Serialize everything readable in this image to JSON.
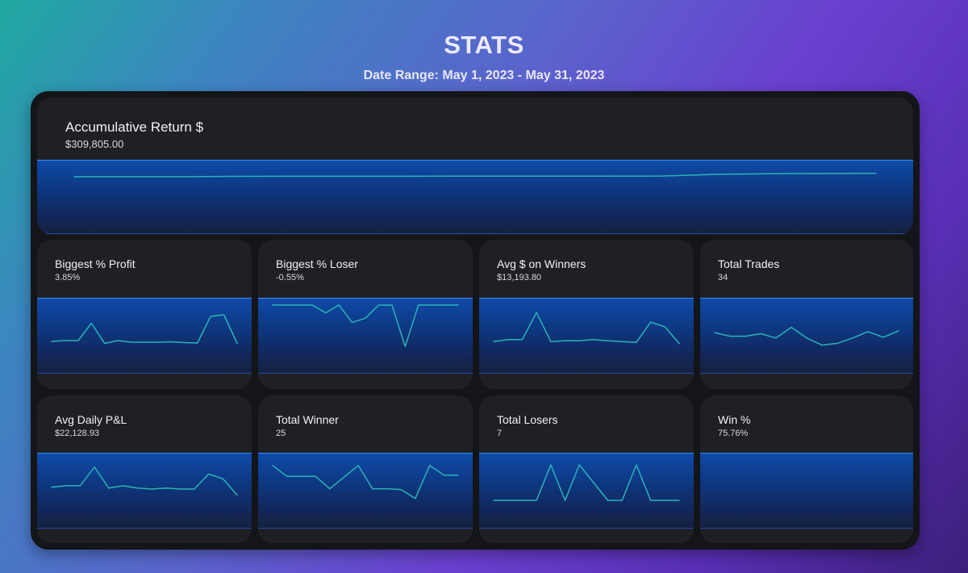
{
  "page": {
    "title": "STATS",
    "date_range": "Date Range: May 1, 2023 - May 31, 2023"
  },
  "hero": {
    "title": "Accumulative Return $",
    "value": "$309,805.00",
    "trend": [
      0,
      0,
      0,
      0.05,
      0.06,
      0.06,
      0.06,
      0.07,
      0.07,
      0.07,
      0.08,
      0.09,
      0.3,
      0.38,
      0.4,
      0.42
    ]
  },
  "cards": [
    {
      "title": "Biggest % Profit",
      "value": "3.85%",
      "trend": [
        0.1,
        0.12,
        0.12,
        0.55,
        0.05,
        0.12,
        0.08,
        0.08,
        0.08,
        0.09,
        0.07,
        0.06,
        0.72,
        0.76,
        0.05
      ]
    },
    {
      "title": "Biggest % Loser",
      "value": "-0.55%",
      "trend": [
        1.0,
        1.0,
        1.0,
        1.0,
        0.82,
        1.0,
        0.6,
        0.7,
        1.0,
        1.0,
        0.05,
        1.0,
        1.0,
        1.0,
        1.0
      ]
    },
    {
      "title": "Avg $ on Winners",
      "value": "$13,193.80",
      "trend": [
        0.1,
        0.15,
        0.15,
        0.85,
        0.1,
        0.12,
        0.12,
        0.15,
        0.12,
        0.1,
        0.08,
        0.6,
        0.48,
        0.05
      ]
    },
    {
      "title": "Total Trades",
      "value": "34",
      "trend": [
        0.45,
        0.35,
        0.35,
        0.42,
        0.3,
        0.6,
        0.3,
        0.1,
        0.15,
        0.3,
        0.48,
        0.32,
        0.5
      ]
    },
    {
      "title": "Avg Daily P&L",
      "value": "$22,128.93",
      "trend": [
        0.42,
        0.45,
        0.45,
        0.85,
        0.4,
        0.45,
        0.4,
        0.38,
        0.4,
        0.38,
        0.38,
        0.7,
        0.6,
        0.25
      ]
    },
    {
      "title": "Total Winner",
      "value": "25",
      "trend": [
        0.9,
        0.62,
        0.62,
        0.62,
        0.3,
        0.6,
        0.9,
        0.3,
        0.3,
        0.28,
        0.05,
        0.9,
        0.65,
        0.65
      ]
    },
    {
      "title": "Total Losers",
      "value": "7",
      "trend": [
        0.0,
        0.0,
        0.0,
        0.0,
        1.0,
        0.0,
        1.0,
        0.5,
        0.0,
        0.0,
        1.0,
        0.0,
        0.0,
        0.0
      ]
    },
    {
      "title": "Win %",
      "value": "75.76%",
      "trend": []
    }
  ]
}
